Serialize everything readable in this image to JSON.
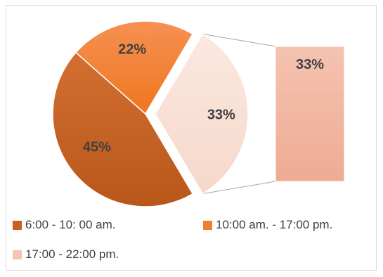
{
  "chart_data": {
    "type": "bar-of-pie",
    "title": "",
    "categories": [
      "6:00 - 10: 00 am.",
      "10:00 am. - 17:00 pm.",
      "17:00 - 22:00 pm."
    ],
    "values": [
      45,
      22,
      33
    ],
    "labels": [
      "45%",
      "22%",
      "33%"
    ],
    "secondary_bar": {
      "categories": [
        "17:00 - 22:00 pm."
      ],
      "values": [
        33
      ],
      "labels": [
        "33%"
      ]
    },
    "colors": [
      "#c5621f",
      "#f07f2e",
      "#f9e0d6"
    ],
    "bar_color": "#f4bba8",
    "legend_position": "bottom",
    "grid": false
  },
  "legend": [
    {
      "label": "6:00 - 10: 00 am.",
      "color": "#c5621f"
    },
    {
      "label": "10:00 am. - 17:00 pm.",
      "color": "#f07f2e"
    },
    {
      "label": "17:00 - 22:00 pm.",
      "color": "#f4c4b0"
    }
  ]
}
